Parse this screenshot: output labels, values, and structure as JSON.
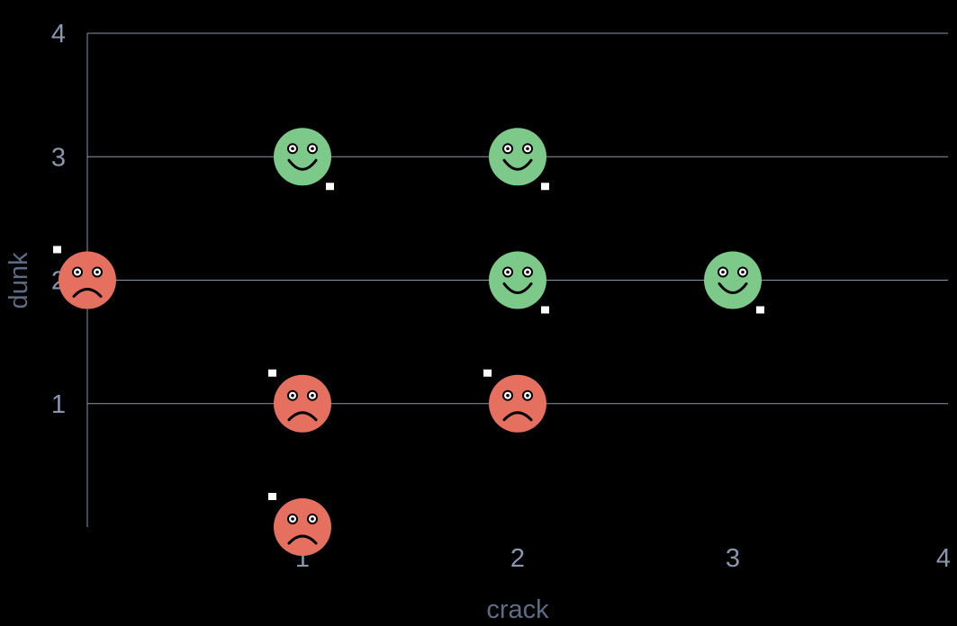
{
  "chart_data": {
    "type": "scatter",
    "title": "",
    "xlabel": "crack",
    "ylabel": "dunk",
    "xlim": [
      0,
      4
    ],
    "ylim": [
      0,
      4
    ],
    "x_ticks": [
      {
        "value": 1,
        "label": "1"
      },
      {
        "value": 2,
        "label": "2"
      },
      {
        "value": 3,
        "label": "3"
      },
      {
        "value": 4,
        "label": "4"
      }
    ],
    "y_ticks": [
      {
        "value": 1,
        "label": "1"
      },
      {
        "value": 2,
        "label": "2"
      },
      {
        "value": 3,
        "label": "3"
      },
      {
        "value": 4,
        "label": "4"
      }
    ],
    "grid": "horizontal",
    "legend": "none",
    "colors": {
      "happy": "#7dc98a",
      "sad": "#e5705f",
      "grid": "#8a96ad",
      "tick_text": "#8a96ad",
      "background": "#000000"
    },
    "points": [
      {
        "x": 1,
        "y": 3,
        "mood": "happy",
        "icon": "smiley-face-icon"
      },
      {
        "x": 2,
        "y": 3,
        "mood": "happy",
        "icon": "smiley-face-icon"
      },
      {
        "x": 2,
        "y": 2,
        "mood": "happy",
        "icon": "smiley-face-icon"
      },
      {
        "x": 3,
        "y": 2,
        "mood": "happy",
        "icon": "smiley-face-icon"
      },
      {
        "x": 0,
        "y": 2,
        "mood": "sad",
        "icon": "frowny-face-icon"
      },
      {
        "x": 1,
        "y": 1,
        "mood": "sad",
        "icon": "frowny-face-icon"
      },
      {
        "x": 2,
        "y": 1,
        "mood": "sad",
        "icon": "frowny-face-icon"
      },
      {
        "x": 1,
        "y": 0,
        "mood": "sad",
        "icon": "frowny-face-icon"
      }
    ]
  }
}
